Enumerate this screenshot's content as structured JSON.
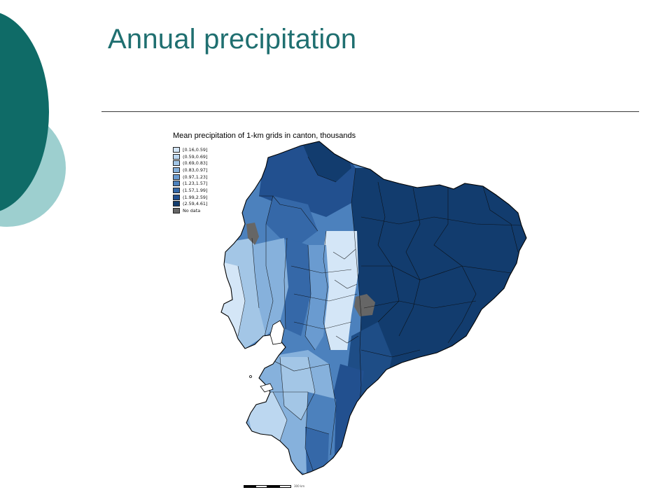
{
  "slide": {
    "title": "Annual precipitation"
  },
  "map": {
    "heading": "Mean precipitation of 1-km grids in canton, thousands",
    "legend": [
      {
        "label": "[0.16,0.59]",
        "color": "#d4e6f7"
      },
      {
        "label": "(0.59,0.69]",
        "color": "#bcd7f0"
      },
      {
        "label": "(0.69,0.83]",
        "color": "#a3c6e6"
      },
      {
        "label": "(0.83,0.97]",
        "color": "#86b1dc"
      },
      {
        "label": "(0.97,1.23]",
        "color": "#6a9bd0"
      },
      {
        "label": "(1.23,1.57]",
        "color": "#4c81bd"
      },
      {
        "label": "(1.57,1.99]",
        "color": "#3568a8"
      },
      {
        "label": "(1.99,2.59]",
        "color": "#22508f"
      },
      {
        "label": "(2.59,4.61]",
        "color": "#123c6e"
      },
      {
        "label": "No data",
        "color": "#666666"
      }
    ],
    "scale_label": "300 km"
  },
  "colors": {
    "title": "#1f6f70",
    "decor_dark": "#0f6b67",
    "decor_light": "#9dcfcf"
  }
}
